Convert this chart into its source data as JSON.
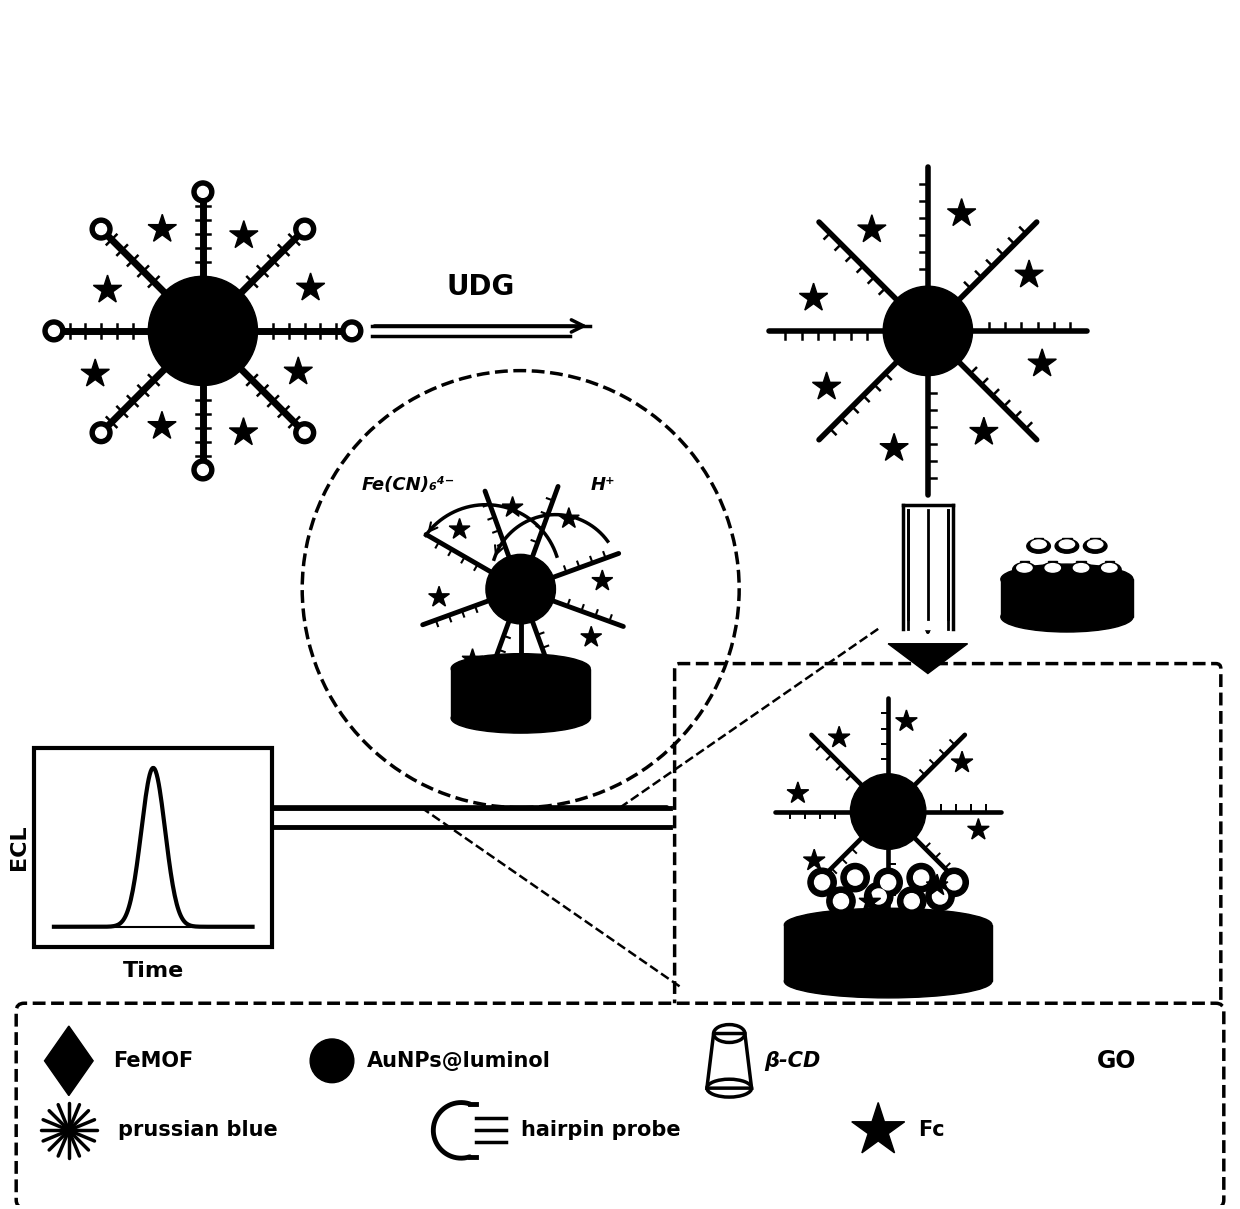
{
  "bg_color": "#ffffff",
  "text_color": "#000000",
  "figsize": [
    12.4,
    12.09
  ],
  "dpi": 100,
  "arrow_label_udg": "UDG",
  "label_fe": "Fe(CN)₆⁴⁻",
  "label_h": "H⁺",
  "label_ecl": "ECL",
  "label_time": "Time",
  "legend_beta_cd": "β-CD"
}
